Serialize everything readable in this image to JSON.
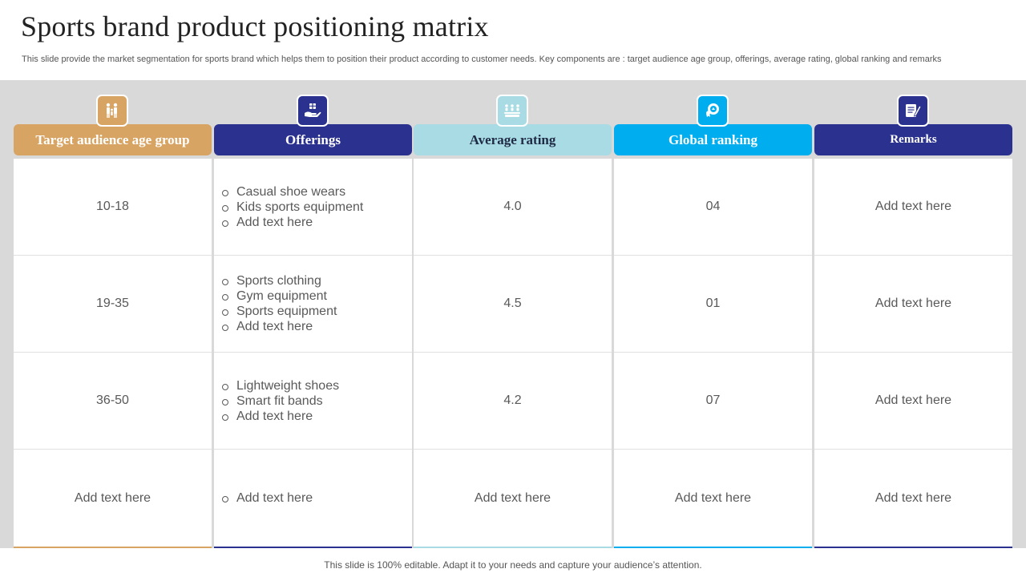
{
  "slide": {
    "title": "Sports brand product positioning matrix",
    "subtitle": "This slide provide the market segmentation for sports brand which helps them to position their product according to customer needs. Key components are : target audience age group, offerings, average rating, global ranking and remarks",
    "footer": "This slide is 100% editable. Adapt it to your needs and capture your audience’s attention."
  },
  "colors": {
    "band": "#d9d9d9",
    "age": "#d8a463",
    "offerings": "#2a318f",
    "rating": "#a8dbe4",
    "ranking": "#00aeef",
    "remarks": "#2a318f"
  },
  "columns": [
    {
      "header": "Target audience age group",
      "icon": "family-icon"
    },
    {
      "header": "Offerings",
      "icon": "hand-gift-icon"
    },
    {
      "header": "Average rating",
      "icon": "audience-group-icon"
    },
    {
      "header": "Global ranking",
      "icon": "award-badge-icon"
    },
    {
      "header": "Remarks",
      "icon": "notes-pencil-icon"
    }
  ],
  "rows": [
    {
      "age": "10-18",
      "offerings": [
        "Casual shoe wears",
        "Kids sports equipment",
        "Add text here"
      ],
      "rating": "4.0",
      "ranking": "04",
      "remarks": "Add text here"
    },
    {
      "age": "19-35",
      "offerings": [
        "Sports clothing",
        "Gym equipment",
        "Sports equipment",
        "Add text here"
      ],
      "rating": "4.5",
      "ranking": "01",
      "remarks": "Add text here"
    },
    {
      "age": "36-50",
      "offerings": [
        "Lightweight shoes",
        "Smart fit bands",
        "Add text here"
      ],
      "rating": "4.2",
      "ranking": "07",
      "remarks": "Add text here"
    },
    {
      "age": "Add text here",
      "offerings": [
        "Add text here"
      ],
      "rating": "Add text here",
      "ranking": "Add text here",
      "remarks": "Add text here"
    }
  ]
}
